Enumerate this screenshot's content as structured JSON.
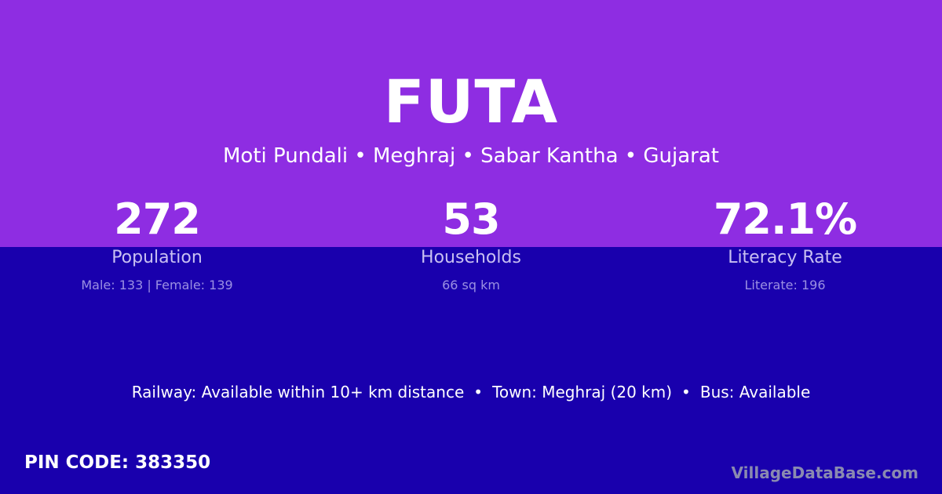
{
  "village": {
    "name": "FUTA"
  },
  "breadcrumb": {
    "text": "Moti Pundali • Meghraj • Sabar Kantha • Gujarat"
  },
  "stats": [
    {
      "value": "272",
      "label": "Population",
      "detail": "Male: 133 | Female: 139"
    },
    {
      "value": "53",
      "label": "Households",
      "detail": "66 sq km"
    },
    {
      "value": "72.1%",
      "label": "Literacy Rate",
      "detail": "Literate: 196"
    }
  ],
  "transport": {
    "railway": "Railway: Available within 10+ km distance",
    "town": "Town: Meghraj (20 km)",
    "bus": "Bus: Available",
    "separator": "•"
  },
  "pin_code": "PIN CODE: 383350",
  "brand": "VillageDataBase.com",
  "colors": {
    "top_background": "#8e2de2",
    "bottom_background": "#1900ad"
  }
}
